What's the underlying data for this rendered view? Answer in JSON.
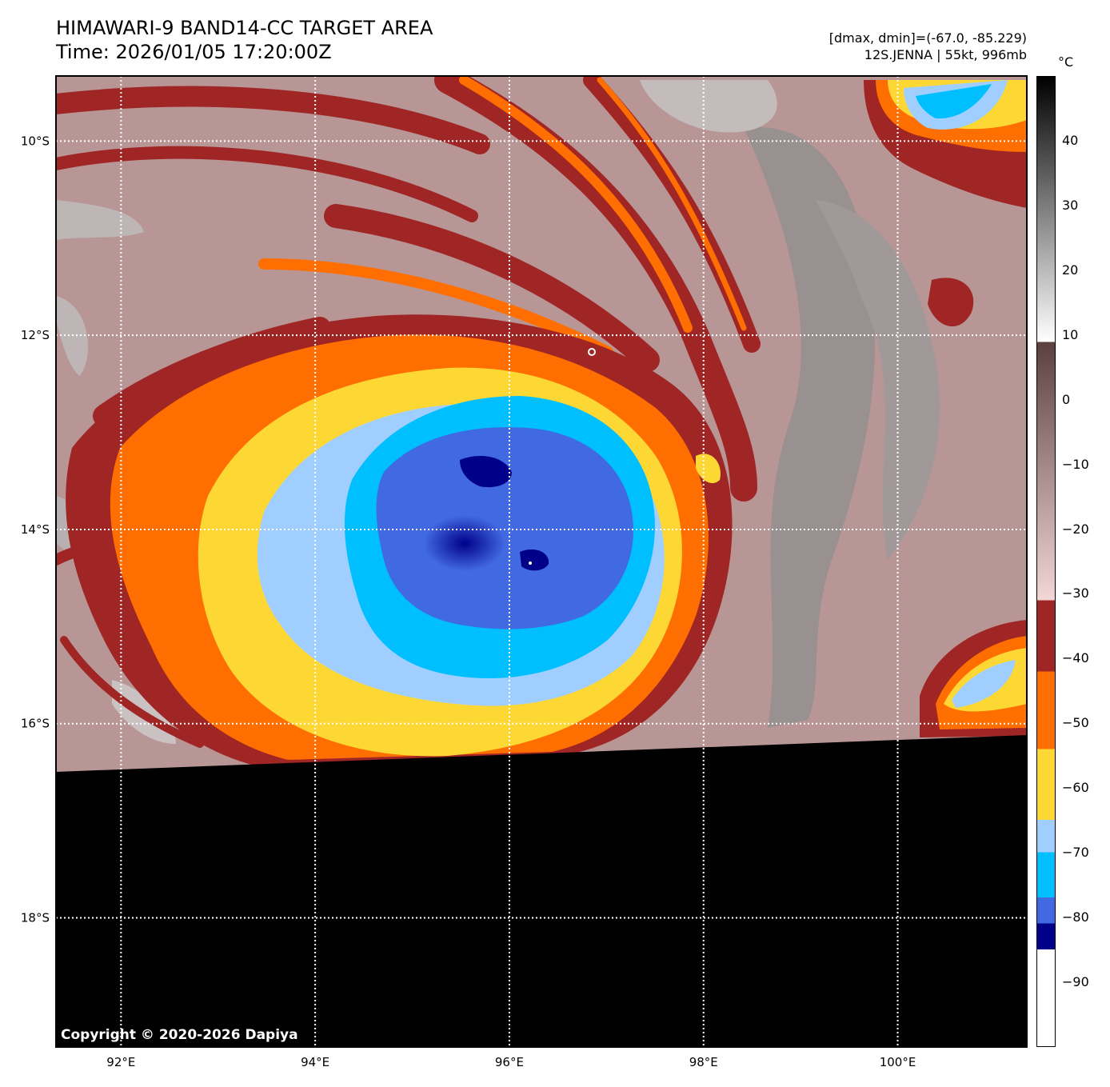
{
  "header": {
    "title_line1": "HIMAWARI-9 BAND14-CC TARGET AREA",
    "title_line2": "Time: 2026/01/05 17:20:00Z",
    "meta_line1": "[dmax, dmin]=(-67.0, -85.229)",
    "meta_line2": "12S.JENNA | 55kt, 996mb"
  },
  "map": {
    "lon_range": [
      91.33,
      101.33
    ],
    "lat_range": [
      -19.33,
      -9.33
    ],
    "lon_ticks": [
      {
        "value": 92,
        "label": "92°E"
      },
      {
        "value": 94,
        "label": "94°E"
      },
      {
        "value": 96,
        "label": "96°E"
      },
      {
        "value": 98,
        "label": "98°E"
      },
      {
        "value": 100,
        "label": "100°E"
      }
    ],
    "lat_ticks": [
      {
        "value": -10,
        "label": "10°S"
      },
      {
        "value": -12,
        "label": "12°S"
      },
      {
        "value": -14,
        "label": "14°S"
      },
      {
        "value": -16,
        "label": "16°S"
      },
      {
        "value": -18,
        "label": "18°S"
      }
    ],
    "storm_center": {
      "lon": 95.4,
      "lat": -14.2
    },
    "no_data_color": "#000000",
    "copyright": "Copyright © 2020-2026 Dapiya"
  },
  "colorbar": {
    "unit": "°C",
    "range": [
      -100,
      50
    ],
    "ticks": [
      "40",
      "30",
      "20",
      "10",
      "0",
      "−10",
      "−20",
      "−30",
      "−40",
      "−50",
      "−60",
      "−70",
      "−80",
      "−90"
    ],
    "tick_values": [
      40,
      30,
      20,
      10,
      0,
      -10,
      -20,
      -30,
      -40,
      -50,
      -60,
      -70,
      -80,
      -90
    ],
    "segments": [
      {
        "from": -100,
        "to": -85,
        "color": "#ffffff"
      },
      {
        "from": -85,
        "to": -81,
        "color": "#00008b"
      },
      {
        "from": -81,
        "to": -77,
        "color": "#4169e1"
      },
      {
        "from": -77,
        "to": -70,
        "color": "#00bfff"
      },
      {
        "from": -70,
        "to": -65,
        "color": "#a0cfff"
      },
      {
        "from": -65,
        "to": -54,
        "color": "#fdd835"
      },
      {
        "from": -54,
        "to": -42,
        "color": "#ff6e00"
      },
      {
        "from": -42,
        "to": -31,
        "color": "#a02525"
      }
    ],
    "gradient_warm": {
      "from": -31,
      "to": 9,
      "colors": [
        "#f3d6d6",
        "#5c4040"
      ]
    },
    "gradient_gray": {
      "from": 9,
      "to": 50,
      "colors": [
        "#ffffff",
        "#000000"
      ]
    }
  }
}
